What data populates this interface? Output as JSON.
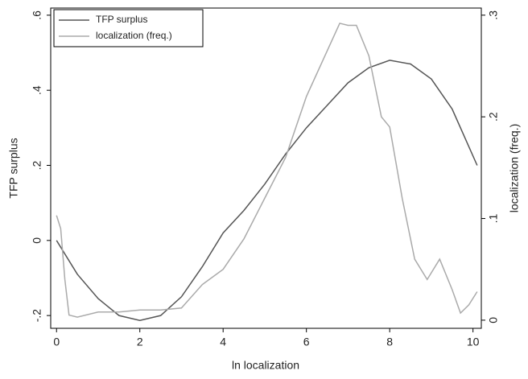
{
  "chart_data": {
    "type": "line",
    "x_label": "ln localization",
    "y_label": "TFP surplus",
    "y2_label": "localization (freq.)",
    "xlim": [
      -0.14,
      10.2
    ],
    "xticks": [
      0,
      2,
      4,
      6,
      8,
      10
    ],
    "ylim": [
      -0.234,
      0.619
    ],
    "yticks": [
      {
        "value": -0.2,
        "label": "-.2"
      },
      0,
      {
        "value": 0.2,
        "label": ".2"
      },
      {
        "value": 0.4,
        "label": ".4"
      },
      {
        "value": 0.6,
        "label": ".6"
      }
    ],
    "y2lim": [
      -0.008,
      0.307
    ],
    "y2ticks": [
      0,
      {
        "value": 0.1,
        "label": ".1"
      },
      {
        "value": 0.2,
        "label": ".2"
      },
      {
        "value": 0.3,
        "label": ".3"
      }
    ],
    "legend": "top-left",
    "series": [
      {
        "name": "TFP surplus",
        "color": "#555555",
        "x": [
          0,
          0.5,
          1,
          1.5,
          2,
          2.5,
          3,
          3.5,
          4,
          4.5,
          5,
          5.5,
          6,
          6.5,
          7,
          7.5,
          8,
          8.5,
          9,
          9.5,
          10.1
        ],
        "values": [
          0,
          -0.09,
          -0.155,
          -0.2,
          -0.213,
          -0.2,
          -0.15,
          -0.07,
          0.02,
          0.08,
          0.15,
          0.23,
          0.3,
          0.36,
          0.42,
          0.46,
          0.48,
          0.47,
          0.43,
          0.35,
          0.2
        ]
      },
      {
        "name": "localization (freq.)",
        "color": "#aaaaaa",
        "axis": "y2",
        "x": [
          0,
          0.1,
          0.2,
          0.3,
          0.5,
          1,
          1.5,
          2,
          2.5,
          3,
          3.5,
          4,
          4.5,
          5,
          5.5,
          6,
          6.5,
          6.8,
          7,
          7.2,
          7.5,
          7.8,
          8,
          8.3,
          8.6,
          8.9,
          9.2,
          9.5,
          9.7,
          9.9,
          10.1
        ],
        "values": [
          0.103,
          0.09,
          0.04,
          0.005,
          0.003,
          0.008,
          0.008,
          0.01,
          0.01,
          0.012,
          0.035,
          0.05,
          0.08,
          0.12,
          0.16,
          0.22,
          0.265,
          0.292,
          0.29,
          0.29,
          0.26,
          0.2,
          0.19,
          0.12,
          0.06,
          0.04,
          0.06,
          0.03,
          0.007,
          0.015,
          0.028
        ]
      }
    ]
  }
}
